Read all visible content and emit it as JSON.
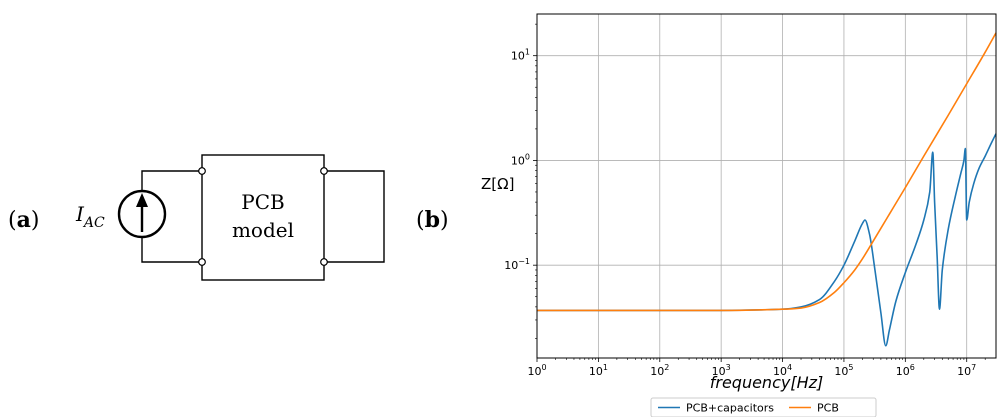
{
  "panel_a": {
    "label_open": "(",
    "label_letter": "a",
    "label_close": ")",
    "source_symbol": "I",
    "source_subscript": "AC",
    "box_line1": "PCB",
    "box_line2": "model"
  },
  "panel_b": {
    "label_open": "(",
    "label_letter": "b",
    "label_close": ")"
  },
  "chart_data": {
    "type": "line",
    "xlabel": "frequency[Hz]",
    "ylabel": "Z[Ω]",
    "x_scale": "log",
    "y_scale": "log",
    "xlim": [
      1,
      30000000
    ],
    "ylim": [
      0.013,
      25
    ],
    "x_ticks": [
      {
        "value": 1,
        "base": "10",
        "exp": "0"
      },
      {
        "value": 10,
        "base": "10",
        "exp": "1"
      },
      {
        "value": 100,
        "base": "10",
        "exp": "2"
      },
      {
        "value": 1000,
        "base": "10",
        "exp": "3"
      },
      {
        "value": 10000,
        "base": "10",
        "exp": "4"
      },
      {
        "value": 100000,
        "base": "10",
        "exp": "5"
      },
      {
        "value": 1000000,
        "base": "10",
        "exp": "6"
      },
      {
        "value": 10000000,
        "base": "10",
        "exp": "7"
      }
    ],
    "y_ticks": [
      {
        "value": 0.1,
        "base": "10",
        "exp": "−1"
      },
      {
        "value": 1,
        "base": "10",
        "exp": "0"
      },
      {
        "value": 10,
        "base": "10",
        "exp": "1"
      }
    ],
    "grid": true,
    "legend_position": "bottom-center, below axes",
    "series": [
      {
        "name": "PCB+capacitors",
        "color": "#1f77b4",
        "x": [
          1,
          10,
          100,
          1000,
          10000,
          20000,
          40000,
          70000,
          100000,
          150000,
          200000,
          220000,
          260000,
          320000,
          400000,
          480000,
          550000,
          700000,
          1000000,
          1500000,
          2000000,
          2500000,
          2800000,
          3000000,
          3300000,
          3600000,
          4000000,
          5000000,
          6500000,
          8000000,
          9000000,
          9500000,
          10000000,
          11000000,
          13000000,
          16000000,
          20000000,
          25000000,
          30000000
        ],
        "y": [
          0.037,
          0.037,
          0.037,
          0.037,
          0.038,
          0.04,
          0.047,
          0.07,
          0.1,
          0.17,
          0.25,
          0.27,
          0.2,
          0.09,
          0.035,
          0.017,
          0.024,
          0.045,
          0.085,
          0.16,
          0.27,
          0.5,
          1.2,
          0.4,
          0.12,
          0.038,
          0.09,
          0.22,
          0.45,
          0.75,
          1.0,
          1.3,
          0.27,
          0.4,
          0.6,
          0.85,
          1.1,
          1.45,
          1.8
        ]
      },
      {
        "name": "PCB",
        "color": "#ff7f0e",
        "x": [
          1,
          10,
          100,
          1000,
          10000,
          20000,
          40000,
          70000,
          100000,
          150000,
          200000,
          300000,
          500000,
          1000000,
          2000000,
          5000000,
          10000000,
          20000000,
          30000000
        ],
        "y": [
          0.037,
          0.037,
          0.037,
          0.037,
          0.038,
          0.039,
          0.044,
          0.055,
          0.068,
          0.09,
          0.115,
          0.17,
          0.28,
          0.55,
          1.1,
          2.7,
          5.4,
          10.8,
          16.5
        ]
      }
    ]
  }
}
